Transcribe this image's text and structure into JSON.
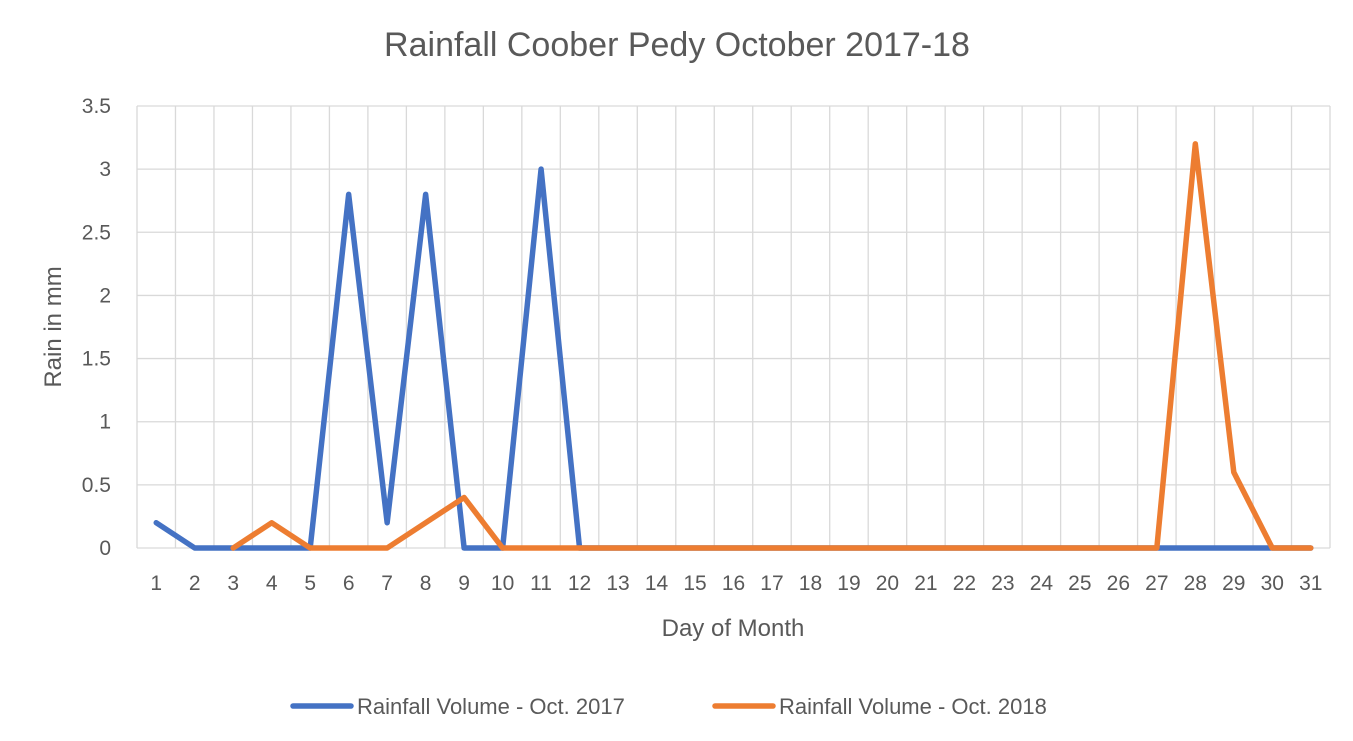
{
  "chart_data": {
    "type": "line",
    "title": "Rainfall Coober Pedy October 2017-18",
    "xlabel": "Day of Month",
    "ylabel": "Rain in mm",
    "x": [
      1,
      2,
      3,
      4,
      5,
      6,
      7,
      8,
      9,
      10,
      11,
      12,
      13,
      14,
      15,
      16,
      17,
      18,
      19,
      20,
      21,
      22,
      23,
      24,
      25,
      26,
      27,
      28,
      29,
      30,
      31
    ],
    "ylim": [
      0,
      3.5
    ],
    "yticks": [
      0,
      0.5,
      1,
      1.5,
      2,
      2.5,
      3,
      3.5
    ],
    "ytick_labels": [
      "0",
      "0.5",
      "1",
      "1.5",
      "2",
      "2.5",
      "3",
      "3.5"
    ],
    "grid": true,
    "legend_position": "bottom",
    "series": [
      {
        "name": "Rainfall Volume - Oct. 2017",
        "color": "#4472C4",
        "x": [
          1,
          2,
          3,
          4,
          5,
          6,
          7,
          8,
          9,
          10,
          11,
          12,
          13,
          14,
          15,
          16,
          17,
          18,
          19,
          20,
          21,
          22,
          23,
          24,
          25,
          26,
          27,
          28,
          29,
          30,
          31
        ],
        "values": [
          0.2,
          0,
          0,
          0,
          0,
          2.8,
          0.2,
          2.8,
          0,
          0,
          3,
          0,
          0,
          0,
          0,
          0,
          0,
          0,
          0,
          0,
          0,
          0,
          0,
          0,
          0,
          0,
          0,
          0,
          0,
          0,
          0
        ]
      },
      {
        "name": "Rainfall Volume - Oct. 2018",
        "color": "#ED7D31",
        "x": [
          3,
          4,
          5,
          6,
          7,
          8,
          9,
          10,
          11,
          12,
          13,
          14,
          15,
          16,
          17,
          18,
          19,
          20,
          21,
          22,
          23,
          24,
          25,
          26,
          27,
          28,
          29,
          30,
          31
        ],
        "values": [
          0,
          0.2,
          0,
          0,
          0,
          0.2,
          0.4,
          0,
          0,
          0,
          0,
          0,
          0,
          0,
          0,
          0,
          0,
          0,
          0,
          0,
          0,
          0,
          0,
          0,
          0,
          3.2,
          0.6,
          0,
          0
        ]
      }
    ]
  }
}
